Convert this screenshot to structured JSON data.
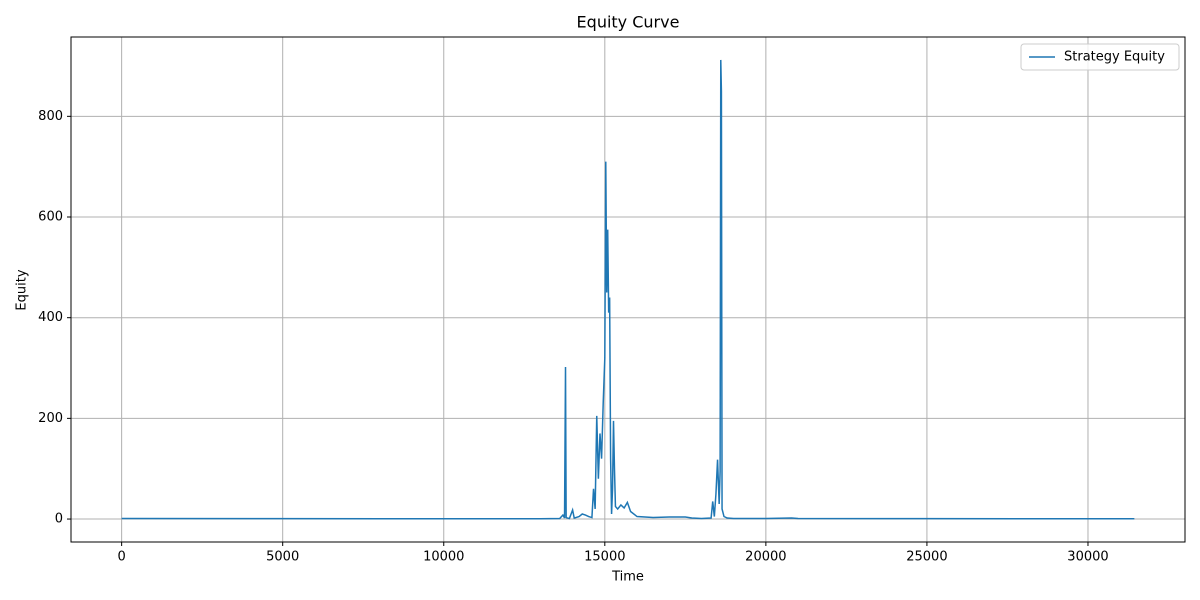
{
  "chart_data": {
    "type": "line",
    "title": "Equity Curve",
    "x_label": "Time",
    "y_label": "Equity",
    "x": [
      0,
      5000,
      10000,
      13000,
      13600,
      13700,
      13750,
      13780,
      13800,
      13900,
      14000,
      14050,
      14200,
      14300,
      14400,
      14500,
      14600,
      14650,
      14700,
      14750,
      14800,
      14850,
      14900,
      14950,
      15000,
      15030,
      15060,
      15090,
      15120,
      15150,
      15180,
      15210,
      15240,
      15270,
      15300,
      15330,
      15400,
      15500,
      15600,
      15700,
      15800,
      16000,
      16500,
      17000,
      17500,
      17700,
      18000,
      18300,
      18350,
      18400,
      18450,
      18500,
      18550,
      18580,
      18600,
      18620,
      18640,
      18700,
      18800,
      19000,
      20000,
      20800,
      21000,
      25000,
      31440
    ],
    "series": [
      {
        "name": "Strategy Equity",
        "color": "#1f77b4",
        "values": [
          1,
          0.8,
          0.5,
          0.5,
          1,
          8,
          2,
          302,
          3,
          1,
          18,
          2,
          5,
          10,
          8,
          5,
          3,
          60,
          20,
          205,
          80,
          170,
          120,
          230,
          320,
          710,
          450,
          575,
          410,
          440,
          120,
          10,
          60,
          195,
          100,
          25,
          20,
          28,
          22,
          33,
          15,
          5,
          3,
          4,
          4,
          2,
          1,
          2,
          35,
          5,
          50,
          118,
          30,
          95,
          912,
          850,
          20,
          5,
          2,
          1,
          1,
          2,
          1,
          0.8,
          0.5
        ]
      }
    ],
    "xlim": [
      -1572,
      33012
    ],
    "ylim": [
      -45.6,
      957.6
    ],
    "xticks": [
      0,
      5000,
      10000,
      15000,
      20000,
      25000,
      30000
    ],
    "yticks": [
      0,
      200,
      400,
      600,
      800
    ],
    "grid": true,
    "legend": "upper right"
  }
}
